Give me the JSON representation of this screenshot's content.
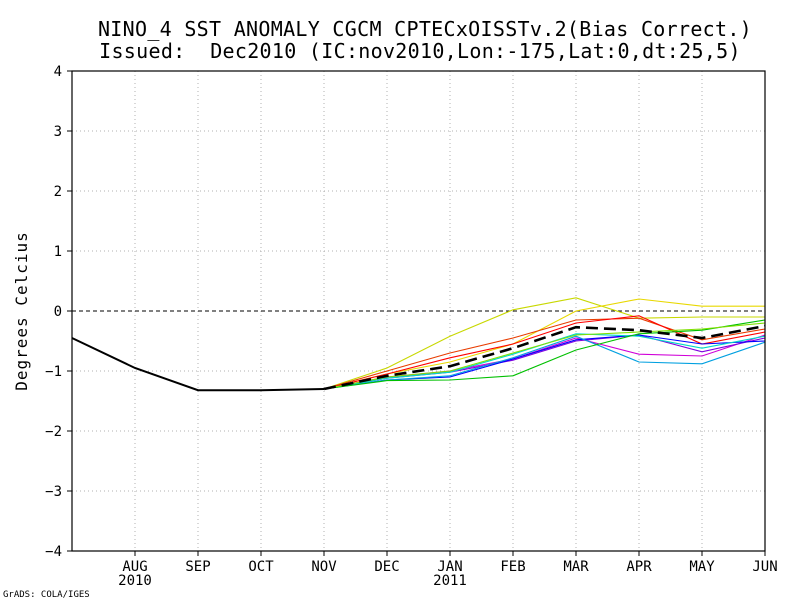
{
  "chart_data": {
    "type": "line",
    "title": "NINO_4 SST ANOMALY CGCM CPTECxOISSTv.2(Bias Correct.)",
    "subtitle": "Issued:  Dec2010 (IC:nov2010,Lon:-175,Lat:0,dt:25,5)",
    "xlabel": "",
    "ylabel": "Degrees Celcius",
    "ylim": [
      -4,
      4
    ],
    "yticks": [
      "4",
      "3",
      "2",
      "1",
      "0",
      "−1",
      "−2",
      "−3",
      "−4"
    ],
    "ytick_values": [
      4,
      3,
      2,
      1,
      0,
      -1,
      -2,
      -3,
      -4
    ],
    "x_months": [
      "AUG",
      "SEP",
      "OCT",
      "NOV",
      "DEC",
      "JAN",
      "FEB",
      "MAR",
      "APR",
      "MAY",
      "JUN"
    ],
    "x_month_index": [
      1,
      2,
      3,
      4,
      5,
      6,
      7,
      8,
      9,
      10,
      11
    ],
    "x_years": [
      {
        "label": "2010",
        "at": 1
      },
      {
        "label": "2011",
        "at": 6
      }
    ],
    "xlim": [
      0,
      11
    ],
    "grid": true,
    "zero_line": true,
    "footer": "GrADS: COLA/IGES",
    "observed": {
      "name": "Observed",
      "color": "#000000",
      "x": [
        0,
        1,
        2,
        3,
        4
      ],
      "values": [
        -0.45,
        -0.95,
        -1.32,
        -1.32,
        -1.3
      ]
    },
    "ensemble_mean": {
      "name": "Ensemble mean",
      "color": "#000000",
      "x": [
        4,
        5,
        6,
        7,
        8,
        9,
        10,
        11
      ],
      "values": [
        -1.3,
        -1.08,
        -0.92,
        -0.62,
        -0.27,
        -0.32,
        -0.45,
        -0.25
      ]
    },
    "series": [
      {
        "name": "member-1",
        "color": "#c8d800",
        "x": [
          4,
          5,
          6,
          7,
          8,
          9,
          10,
          11
        ],
        "values": [
          -1.3,
          -0.95,
          -0.42,
          0.02,
          0.22,
          -0.12,
          -0.1,
          -0.1
        ]
      },
      {
        "name": "member-2",
        "color": "#e8d800",
        "x": [
          4,
          5,
          6,
          7,
          8,
          9,
          10,
          11
        ],
        "values": [
          -1.3,
          -1.05,
          -0.85,
          -0.55,
          0.0,
          0.2,
          0.08,
          0.08
        ]
      },
      {
        "name": "member-3",
        "color": "#e83c00",
        "x": [
          4,
          5,
          6,
          7,
          8,
          9,
          10,
          11
        ],
        "values": [
          -1.3,
          -1.0,
          -0.7,
          -0.45,
          -0.15,
          -0.12,
          -0.48,
          -0.3
        ]
      },
      {
        "name": "member-4",
        "color": "#ff0000",
        "x": [
          4,
          5,
          6,
          7,
          8,
          9,
          10,
          11
        ],
        "values": [
          -1.3,
          -1.05,
          -0.78,
          -0.55,
          -0.2,
          -0.08,
          -0.55,
          -0.35
        ]
      },
      {
        "name": "member-5",
        "color": "#d000d8",
        "x": [
          4,
          5,
          6,
          7,
          8,
          9,
          10,
          11
        ],
        "values": [
          -1.3,
          -1.1,
          -1.0,
          -0.8,
          -0.45,
          -0.72,
          -0.75,
          -0.4
        ]
      },
      {
        "name": "member-6",
        "color": "#8000e0",
        "x": [
          4,
          5,
          6,
          7,
          8,
          9,
          10,
          11
        ],
        "values": [
          -1.3,
          -1.12,
          -1.02,
          -0.82,
          -0.5,
          -0.4,
          -0.68,
          -0.45
        ]
      },
      {
        "name": "member-7",
        "color": "#0000ff",
        "x": [
          4,
          5,
          6,
          7,
          8,
          9,
          10,
          11
        ],
        "values": [
          -1.3,
          -1.15,
          -1.1,
          -0.8,
          -0.48,
          -0.4,
          -0.55,
          -0.5
        ]
      },
      {
        "name": "member-8",
        "color": "#00a0e0",
        "x": [
          4,
          5,
          6,
          7,
          8,
          9,
          10,
          11
        ],
        "values": [
          -1.3,
          -1.15,
          -1.08,
          -0.78,
          -0.42,
          -0.85,
          -0.88,
          -0.52
        ]
      },
      {
        "name": "member-9",
        "color": "#00d8c8",
        "x": [
          4,
          5,
          6,
          7,
          8,
          9,
          10,
          11
        ],
        "values": [
          -1.3,
          -1.12,
          -1.02,
          -0.72,
          -0.38,
          -0.42,
          -0.62,
          -0.42
        ]
      },
      {
        "name": "member-10",
        "color": "#00c000",
        "x": [
          4,
          5,
          6,
          7,
          8,
          9,
          10,
          11
        ],
        "values": [
          -1.3,
          -1.16,
          -1.15,
          -1.08,
          -0.65,
          -0.38,
          -0.32,
          -0.15
        ]
      },
      {
        "name": "member-11",
        "color": "#80e000",
        "x": [
          4,
          5,
          6,
          7,
          8,
          9,
          10,
          11
        ],
        "values": [
          -1.3,
          -1.1,
          -1.0,
          -0.7,
          -0.4,
          -0.35,
          -0.3,
          -0.2
        ]
      }
    ]
  }
}
